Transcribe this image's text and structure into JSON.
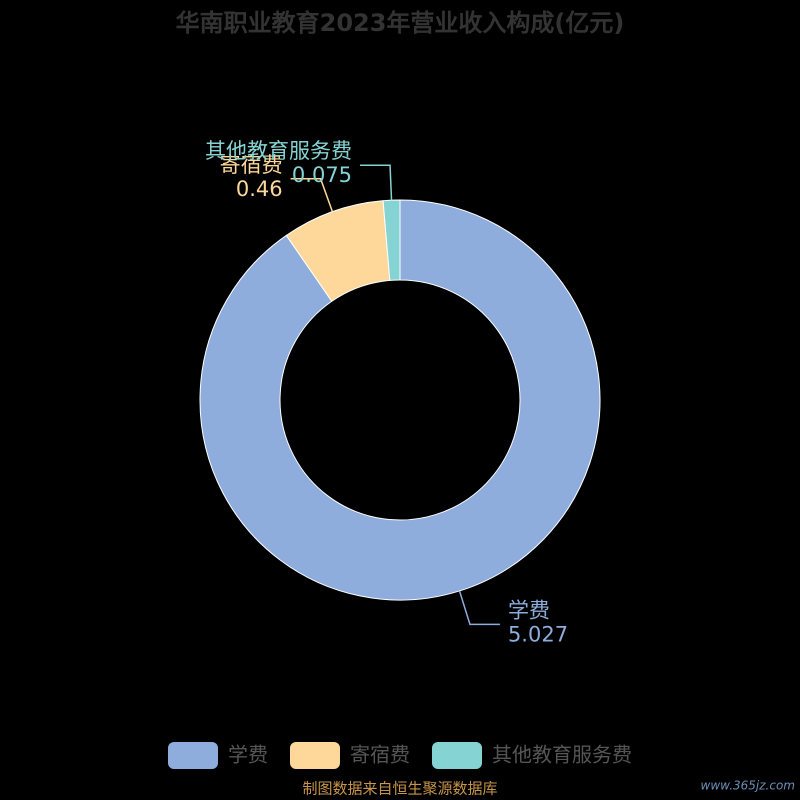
{
  "chart_data": {
    "type": "pie",
    "title": "华南职业教育2023年营业收入构成(亿元)",
    "categories": [
      "学费",
      "寄宿费",
      "其他教育服务费"
    ],
    "values": [
      5.027,
      0.46,
      0.075
    ],
    "colors": [
      "#8eaddc",
      "#fdd89a",
      "#86d3d3"
    ],
    "source": "制图数据来自恒生聚源数据库",
    "watermark": "www.365jz.com"
  }
}
